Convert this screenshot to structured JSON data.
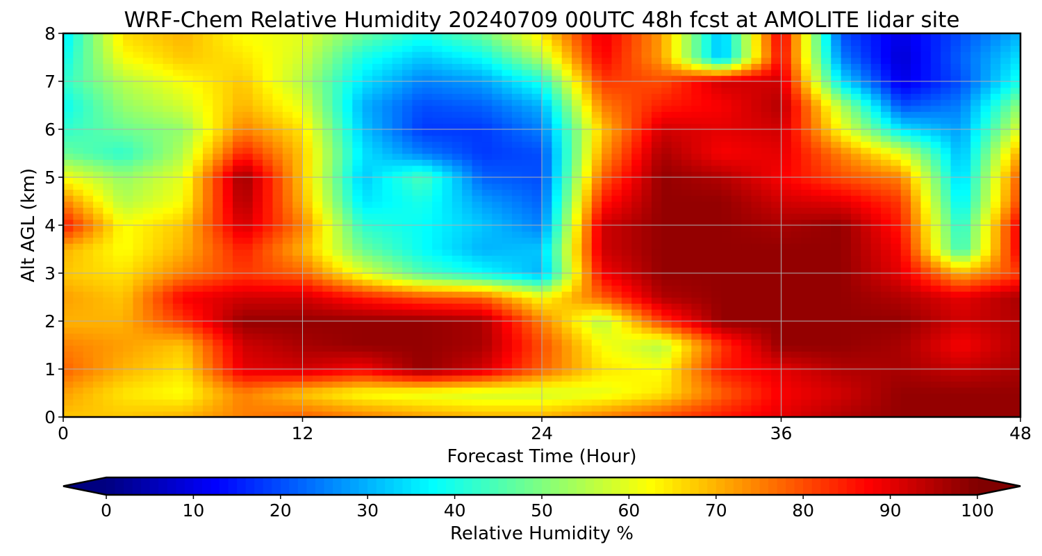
{
  "chart_data": {
    "type": "heatmap",
    "title": "WRF-Chem Relative Humidity 20240709 00UTC 48h fcst at AMOLITE lidar site",
    "xlabel": "Forecast Time (Hour)",
    "ylabel": "Alt AGL (km)",
    "xlim": [
      0,
      48
    ],
    "ylim": [
      0,
      8
    ],
    "x_ticks": [
      "0",
      "12",
      "24",
      "36",
      "48"
    ],
    "y_ticks": [
      "0",
      "1",
      "2",
      "3",
      "4",
      "5",
      "6",
      "7",
      "8"
    ],
    "grid": true,
    "colormap": "jet",
    "colorbar": {
      "label": "Relative Humidity %",
      "range": [
        0,
        100
      ],
      "ticks": [
        "0",
        "10",
        "20",
        "30",
        "40",
        "50",
        "60",
        "70",
        "80",
        "90",
        "100"
      ],
      "extend": "both",
      "placement": "bottom"
    },
    "x": [
      0,
      3,
      6,
      9,
      12,
      15,
      18,
      21,
      24,
      27,
      30,
      33,
      36,
      39,
      42,
      45,
      48
    ],
    "y": [
      0,
      0.5,
      1,
      1.5,
      2,
      2.5,
      3,
      3.5,
      4,
      4.5,
      5,
      5.5,
      6,
      6.5,
      7,
      7.5,
      8
    ],
    "z": [
      [
        68,
        68,
        70,
        75,
        78,
        75,
        72,
        70,
        70,
        75,
        80,
        85,
        90,
        95,
        98,
        98,
        98
      ],
      [
        72,
        65,
        62,
        75,
        68,
        62,
        60,
        58,
        58,
        60,
        65,
        78,
        88,
        92,
        98,
        98,
        98
      ],
      [
        78,
        70,
        65,
        90,
        92,
        88,
        98,
        92,
        78,
        65,
        62,
        85,
        90,
        95,
        96,
        93,
        96
      ],
      [
        75,
        72,
        68,
        92,
        96,
        98,
        98,
        96,
        80,
        62,
        55,
        82,
        98,
        98,
        96,
        88,
        95
      ],
      [
        70,
        70,
        82,
        98,
        98,
        98,
        98,
        96,
        75,
        55,
        82,
        98,
        98,
        98,
        98,
        92,
        95
      ],
      [
        72,
        68,
        88,
        92,
        92,
        85,
        80,
        78,
        62,
        78,
        95,
        98,
        98,
        98,
        95,
        90,
        96
      ],
      [
        68,
        65,
        75,
        82,
        78,
        60,
        45,
        38,
        30,
        88,
        98,
        98,
        98,
        98,
        90,
        70,
        82
      ],
      [
        70,
        62,
        70,
        85,
        70,
        48,
        38,
        30,
        32,
        92,
        98,
        98,
        98,
        98,
        88,
        42,
        90
      ],
      [
        86,
        62,
        68,
        92,
        75,
        42,
        38,
        32,
        25,
        92,
        98,
        98,
        96,
        98,
        85,
        40,
        90
      ],
      [
        75,
        55,
        62,
        96,
        70,
        35,
        40,
        28,
        22,
        85,
        98,
        98,
        92,
        90,
        82,
        35,
        82
      ],
      [
        62,
        52,
        60,
        98,
        68,
        32,
        45,
        22,
        20,
        78,
        98,
        95,
        88,
        80,
        75,
        32,
        80
      ],
      [
        48,
        42,
        55,
        85,
        68,
        35,
        25,
        18,
        20,
        72,
        96,
        88,
        90,
        75,
        60,
        30,
        72
      ],
      [
        42,
        48,
        52,
        75,
        65,
        32,
        18,
        18,
        25,
        68,
        92,
        90,
        92,
        62,
        35,
        28,
        60
      ],
      [
        38,
        52,
        58,
        70,
        60,
        30,
        20,
        22,
        30,
        75,
        85,
        88,
        95,
        55,
        20,
        25,
        52
      ],
      [
        42,
        55,
        62,
        68,
        55,
        35,
        25,
        28,
        40,
        82,
        80,
        92,
        92,
        35,
        10,
        20,
        40
      ],
      [
        38,
        62,
        68,
        65,
        58,
        40,
        32,
        38,
        55,
        88,
        72,
        30,
        88,
        25,
        8,
        22,
        35
      ],
      [
        35,
        66,
        70,
        62,
        60,
        48,
        40,
        48,
        65,
        90,
        72,
        30,
        90,
        20,
        10,
        20,
        30
      ]
    ]
  }
}
